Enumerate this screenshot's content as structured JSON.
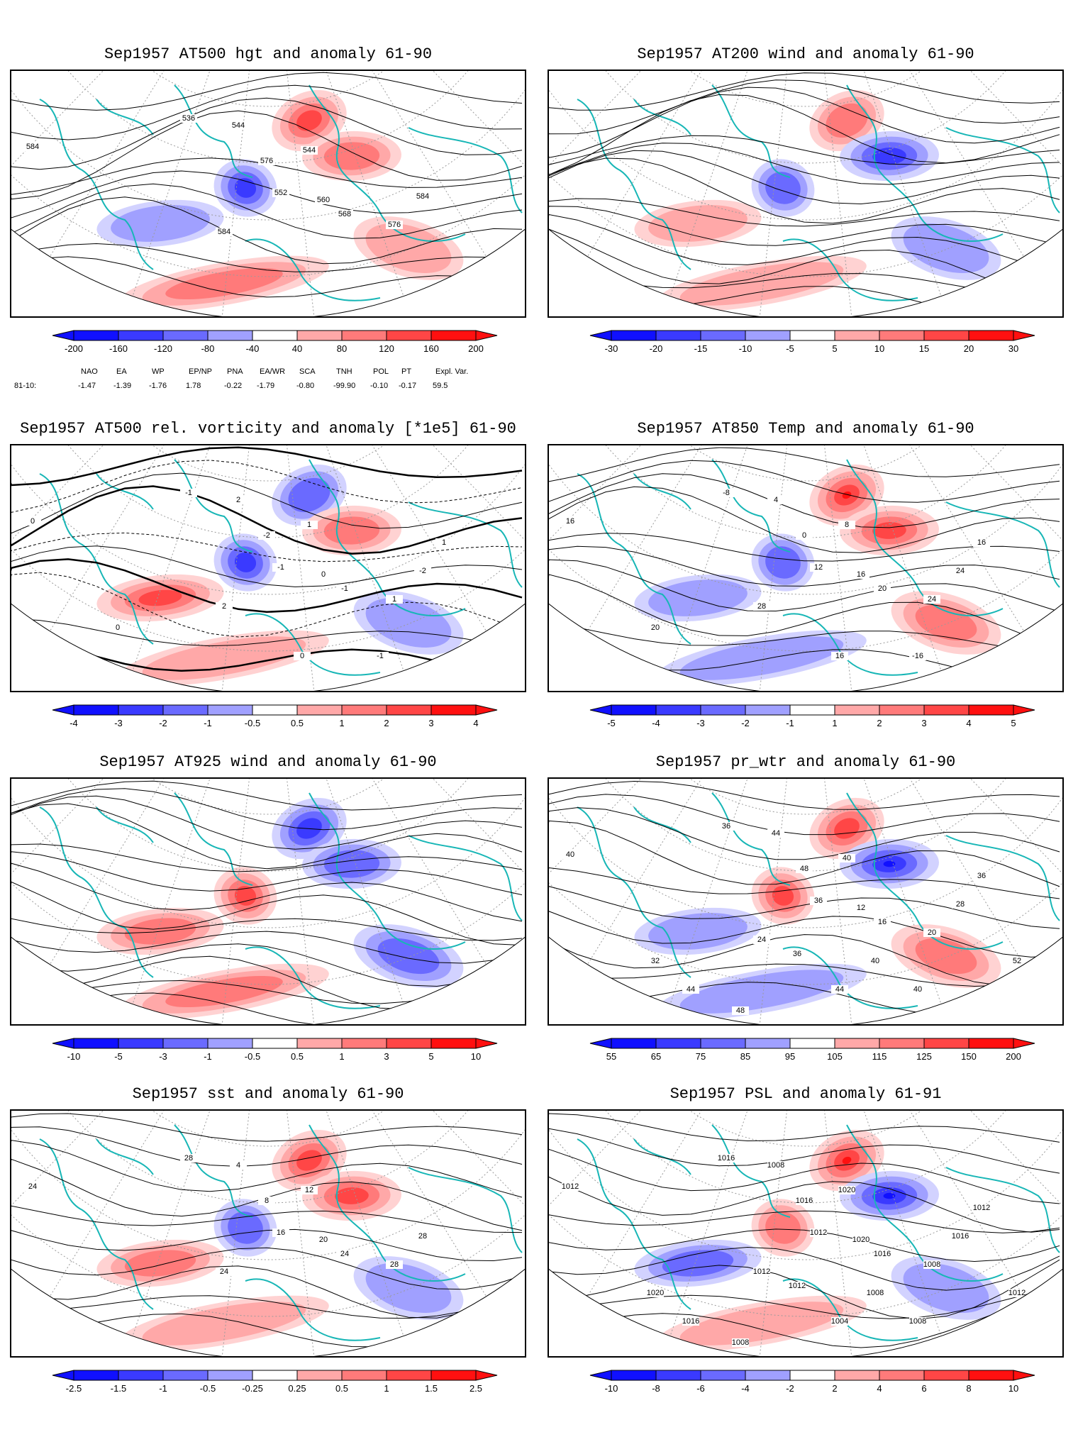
{
  "colors": {
    "blue_scale": [
      "#1010ff",
      "#3a3aff",
      "#6a6aff",
      "#a0a0ff",
      "#d2d2ff"
    ],
    "red_scale": [
      "#ffd2d2",
      "#ffa8a8",
      "#ff7a7a",
      "#ff4646",
      "#ff1010"
    ],
    "coast": "#17b6b6",
    "contour": "#000000",
    "grid": "#9a9a9a"
  },
  "panels": [
    {
      "title": "Sep1957 AT500 hgt and anomaly 61-90",
      "field": "hgt",
      "cbar_labels": [
        "-200",
        "-160",
        "-120",
        "-80",
        "-40",
        "40",
        "80",
        "120",
        "160",
        "200"
      ],
      "contour_labels": [
        "584",
        "536",
        "544",
        "576",
        "544",
        "552",
        "560",
        "568",
        "576",
        "584",
        "584"
      ],
      "anomaly_patches": [
        {
          "sign": "pos",
          "level": 3
        },
        {
          "sign": "pos",
          "level": 2
        },
        {
          "sign": "neg",
          "level": 3
        },
        {
          "sign": "neg",
          "level": 1
        },
        {
          "sign": "pos",
          "level": 1
        },
        {
          "sign": "pos",
          "level": 2
        }
      ],
      "index_header": [
        "NAO",
        "EA",
        "WP",
        "EP/NP",
        "PNA",
        "EA/WR",
        "SCA",
        "TNH",
        "POL",
        "PT",
        "Expl. Var."
      ],
      "index_row_label": "81-10:",
      "index_values": [
        "-1.47",
        "-1.39",
        "-1.76",
        "1.78",
        "-0.22",
        "-1.79",
        "-0.80",
        "-99.90",
        "-0.10",
        "-0.17",
        "59.5"
      ]
    },
    {
      "title": "Sep1957 AT200 wind and anomaly 61-90",
      "field": "wind",
      "cbar_labels": [
        "-30",
        "-20",
        "-15",
        "-10",
        "-5",
        "5",
        "10",
        "15",
        "20",
        "30"
      ],
      "contour_labels": [],
      "anomaly_patches": [
        {
          "sign": "pos",
          "level": 2
        },
        {
          "sign": "neg",
          "level": 3
        },
        {
          "sign": "neg",
          "level": 2
        },
        {
          "sign": "pos",
          "level": 1
        },
        {
          "sign": "neg",
          "level": 1
        },
        {
          "sign": "pos",
          "level": 1
        }
      ]
    },
    {
      "title": "Sep1957 AT500 rel. vorticity and anomaly [*1e5] 61-90",
      "field": "vort",
      "cbar_labels": [
        "-4",
        "-3",
        "-2",
        "-1",
        "-0.5",
        "0.5",
        "1",
        "2",
        "3",
        "4"
      ],
      "contour_labels": [
        "0",
        "-1",
        "2",
        "-2",
        "1",
        "-1",
        "0",
        "-1",
        "1",
        "2",
        "-2",
        "0",
        "1",
        "-1",
        "0"
      ],
      "anomaly_patches": [
        {
          "sign": "neg",
          "level": 2
        },
        {
          "sign": "pos",
          "level": 2
        },
        {
          "sign": "neg",
          "level": 3
        },
        {
          "sign": "pos",
          "level": 3
        },
        {
          "sign": "neg",
          "level": 1
        },
        {
          "sign": "pos",
          "level": 1
        }
      ]
    },
    {
      "title": "Sep1957 AT850 Temp and anomaly 61-90",
      "field": "temp",
      "cbar_labels": [
        "-5",
        "-4",
        "-3",
        "-2",
        "-1",
        "1",
        "2",
        "3",
        "4",
        "5"
      ],
      "contour_labels": [
        "16",
        "-8",
        "4",
        "0",
        "8",
        "12",
        "16",
        "20",
        "24",
        "28",
        "24",
        "20",
        "16",
        "-16",
        "16"
      ],
      "anomaly_patches": [
        {
          "sign": "pos",
          "level": 4
        },
        {
          "sign": "pos",
          "level": 3
        },
        {
          "sign": "neg",
          "level": 2
        },
        {
          "sign": "neg",
          "level": 1
        },
        {
          "sign": "pos",
          "level": 2
        },
        {
          "sign": "neg",
          "level": 1
        }
      ]
    },
    {
      "title": "Sep1957 AT925 wind and anomaly 61-90",
      "field": "wind",
      "cbar_labels": [
        "-10",
        "-5",
        "-3",
        "-1",
        "-0.5",
        "0.5",
        "1",
        "3",
        "5",
        "10"
      ],
      "contour_labels": [],
      "anomaly_patches": [
        {
          "sign": "neg",
          "level": 3
        },
        {
          "sign": "neg",
          "level": 2
        },
        {
          "sign": "pos",
          "level": 3
        },
        {
          "sign": "pos",
          "level": 2
        },
        {
          "sign": "neg",
          "level": 2
        },
        {
          "sign": "pos",
          "level": 2
        }
      ]
    },
    {
      "title": "Sep1957 pr_wtr and anomaly 61-90",
      "field": "prwtr",
      "cbar_labels": [
        "55",
        "65",
        "75",
        "85",
        "95",
        "105",
        "115",
        "125",
        "150",
        "200"
      ],
      "contour_labels": [
        "40",
        "36",
        "44",
        "48",
        "40",
        "36",
        "12",
        "16",
        "20",
        "24",
        "28",
        "32",
        "36",
        "40",
        "44",
        "48",
        "52",
        "44",
        "40",
        "36"
      ],
      "anomaly_patches": [
        {
          "sign": "pos",
          "level": 3
        },
        {
          "sign": "neg",
          "level": 4
        },
        {
          "sign": "pos",
          "level": 3
        },
        {
          "sign": "neg",
          "level": 1
        },
        {
          "sign": "pos",
          "level": 2
        },
        {
          "sign": "neg",
          "level": 1
        }
      ]
    },
    {
      "title": "Sep1957 sst and anomaly 61-90",
      "field": "sst",
      "cbar_labels": [
        "-2.5",
        "-1.5",
        "-1",
        "-0.5",
        "-0.25",
        "0.25",
        "0.5",
        "1",
        "1.5",
        "2.5"
      ],
      "contour_labels": [
        "24",
        "28",
        "4",
        "8",
        "12",
        "16",
        "20",
        "24",
        "28",
        "24",
        "28"
      ],
      "anomaly_patches": [
        {
          "sign": "pos",
          "level": 3
        },
        {
          "sign": "pos",
          "level": 3
        },
        {
          "sign": "neg",
          "level": 2
        },
        {
          "sign": "pos",
          "level": 2
        },
        {
          "sign": "neg",
          "level": 1
        },
        {
          "sign": "pos",
          "level": 1
        }
      ]
    },
    {
      "title": "Sep1957 PSL and anomaly 61-91",
      "field": "psl",
      "cbar_labels": [
        "-10",
        "-8",
        "-6",
        "-4",
        "-2",
        "2",
        "4",
        "6",
        "8",
        "10"
      ],
      "contour_labels": [
        "1012",
        "1016",
        "1008",
        "1016",
        "1020",
        "1012",
        "1020",
        "1016",
        "1008",
        "1012",
        "1016",
        "1020",
        "1012",
        "1008",
        "1004",
        "1008",
        "1012",
        "1016",
        "1008",
        "1012"
      ],
      "anomaly_patches": [
        {
          "sign": "pos",
          "level": 4
        },
        {
          "sign": "neg",
          "level": 4
        },
        {
          "sign": "pos",
          "level": 2
        },
        {
          "sign": "neg",
          "level": 2
        },
        {
          "sign": "neg",
          "level": 1
        },
        {
          "sign": "pos",
          "level": 1
        }
      ]
    }
  ]
}
